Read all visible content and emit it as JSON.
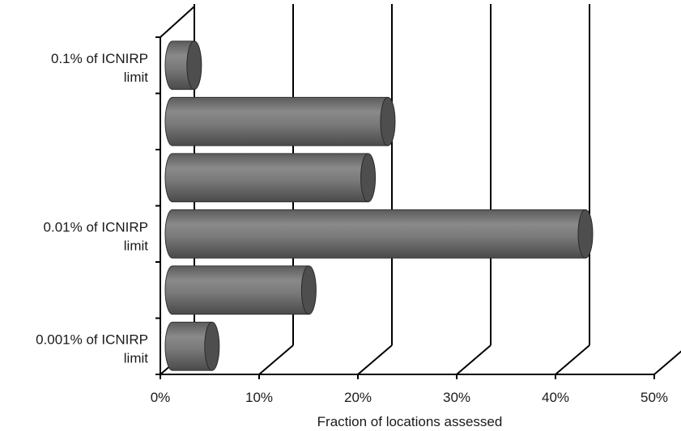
{
  "chart_data": {
    "type": "bar",
    "orientation": "horizontal",
    "style": "3d-cylinder",
    "title": "",
    "xlabel": "Fraction of locations assessed",
    "ylabel": "",
    "xlim": [
      0,
      50
    ],
    "x_ticks": [
      "0%",
      "10%",
      "20%",
      "30%",
      "40%",
      "50%"
    ],
    "y_tick_labels": [
      {
        "line1": "0.1% of ICNIRP",
        "line2": "limit",
        "bar_index": 0
      },
      {
        "line1": "0.01% of ICNIRP",
        "line2": "limit",
        "bar_index": 3
      },
      {
        "line1": "0.001% of ICNIRP",
        "line2": "limit",
        "bar_index": 5
      }
    ],
    "values": [
      2.2,
      21.8,
      19.8,
      41.8,
      13.8,
      4.0
    ],
    "bar_color": "#6e6e6e",
    "grid": true
  }
}
